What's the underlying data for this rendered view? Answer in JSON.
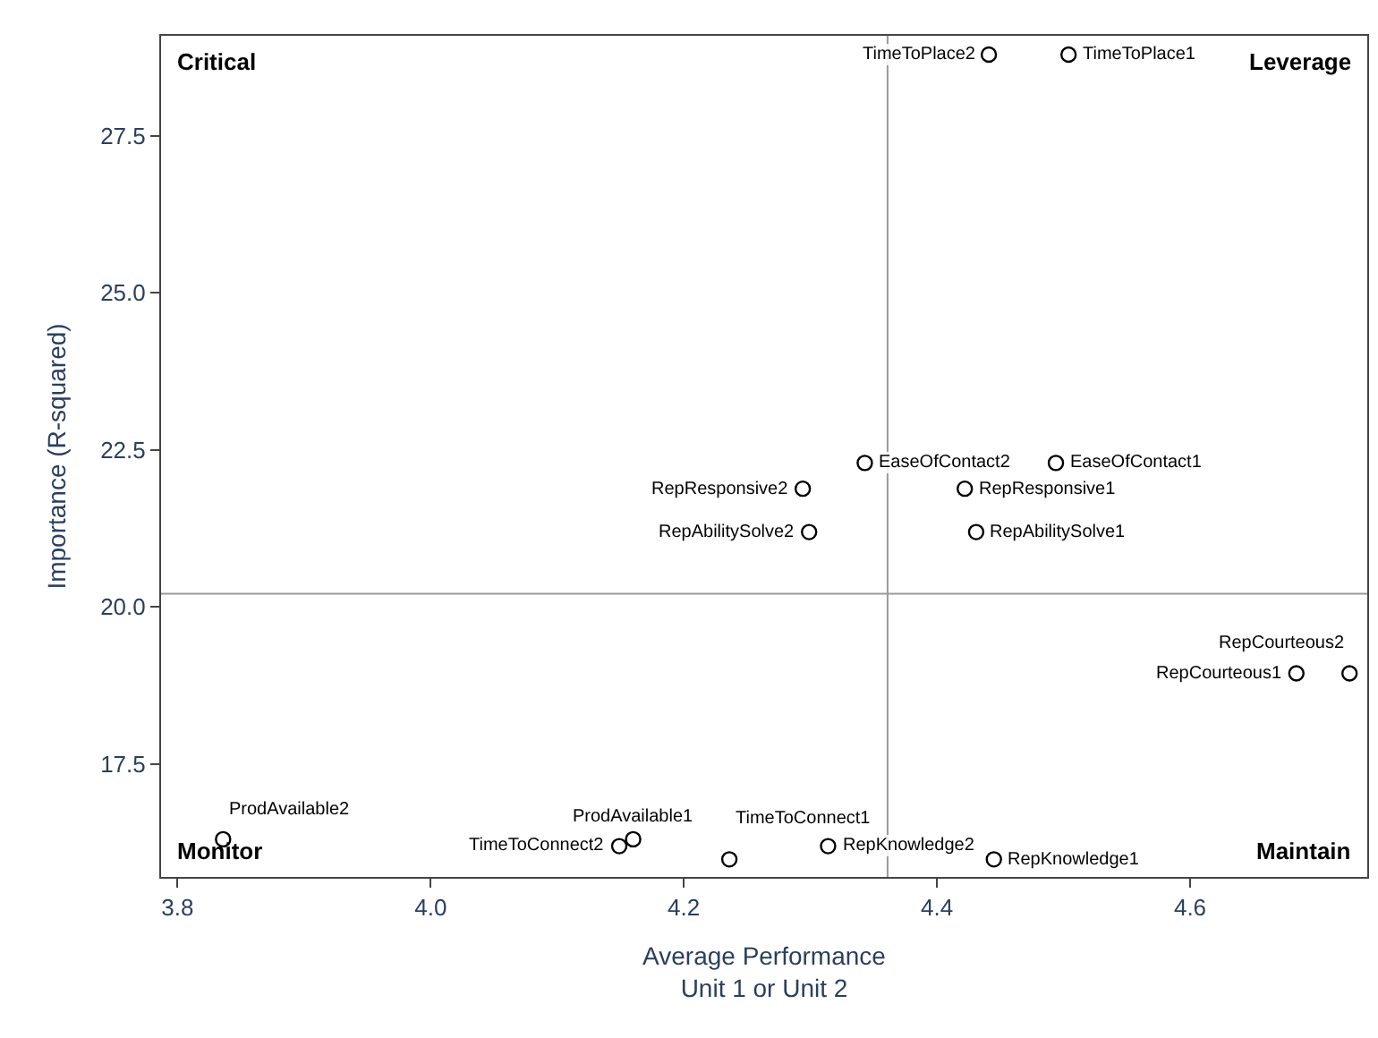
{
  "chart_data": {
    "type": "scatter",
    "xlabel": "Average Performance\nUnit 1 or Unit 2",
    "ylabel": "Importance (R-squared)",
    "x": [
      4.441,
      4.504,
      4.343,
      4.494,
      4.294,
      4.422,
      4.299,
      4.431,
      4.684,
      4.726,
      3.836,
      4.149,
      4.16,
      4.314,
      4.236,
      4.445
    ],
    "values": [
      28.79,
      28.79,
      22.29,
      22.29,
      21.88,
      21.88,
      21.19,
      21.19,
      18.94,
      18.94,
      16.3,
      16.19,
      16.3,
      16.19,
      15.98,
      15.98
    ],
    "color": "#000000",
    "marker": "circle",
    "xlim": [
      3.787,
      4.74
    ],
    "ylim": [
      15.7,
      29.09
    ],
    "xticks": [
      3.8,
      {
        "value": 4,
        "label": "4.0"
      },
      4.2,
      4.4,
      4.6
    ],
    "yticks": [
      17.5,
      {
        "value": 20,
        "label": "20.0"
      },
      22.5,
      {
        "value": 25,
        "label": "25.0"
      },
      27.5
    ],
    "ref_lines": [
      {
        "axis": "x",
        "value": 4.361,
        "color": "#999999"
      },
      {
        "axis": "y",
        "value": 20.21,
        "color": "#999999"
      }
    ],
    "annotations": [
      "Critical",
      "Leverage",
      "Monitor",
      "Maintain",
      {
        "text": "TimeToPlace2",
        "x": 4.441,
        "y": 28.79
      },
      {
        "text": "TimeToPlace1",
        "x": 4.504,
        "y": 28.79
      },
      {
        "text": "EaseOfContact2",
        "x": 4.343,
        "y": 22.29
      },
      {
        "text": "EaseOfContact1",
        "x": 4.494,
        "y": 22.29
      },
      {
        "text": "RepResponsive2",
        "x": 4.294,
        "y": 21.88
      },
      {
        "text": "RepResponsive1",
        "x": 4.422,
        "y": 21.88
      },
      {
        "text": "RepAbilitySolve2",
        "x": 4.299,
        "y": 21.19
      },
      {
        "text": "RepAbilitySolve1",
        "x": 4.431,
        "y": 21.19
      },
      {
        "text": "RepCourteous1",
        "x": 4.684,
        "y": 18.94
      },
      {
        "text": "RepCourteous2",
        "x": 4.726,
        "y": 18.94
      },
      {
        "text": "ProdAvailable2",
        "x": 3.836,
        "y": 16.3
      },
      {
        "text": "TimeToConnect2",
        "x": 4.149,
        "y": 16.19
      },
      {
        "text": "ProdAvailable1",
        "x": 4.16,
        "y": 16.3
      },
      {
        "text": "RepKnowledge2",
        "x": 4.314,
        "y": 16.19
      },
      {
        "text": "TimeToConnect1",
        "x": 4.236,
        "y": 15.98
      },
      {
        "text": "RepKnowledge1",
        "x": 4.445,
        "y": 15.98
      }
    ]
  }
}
